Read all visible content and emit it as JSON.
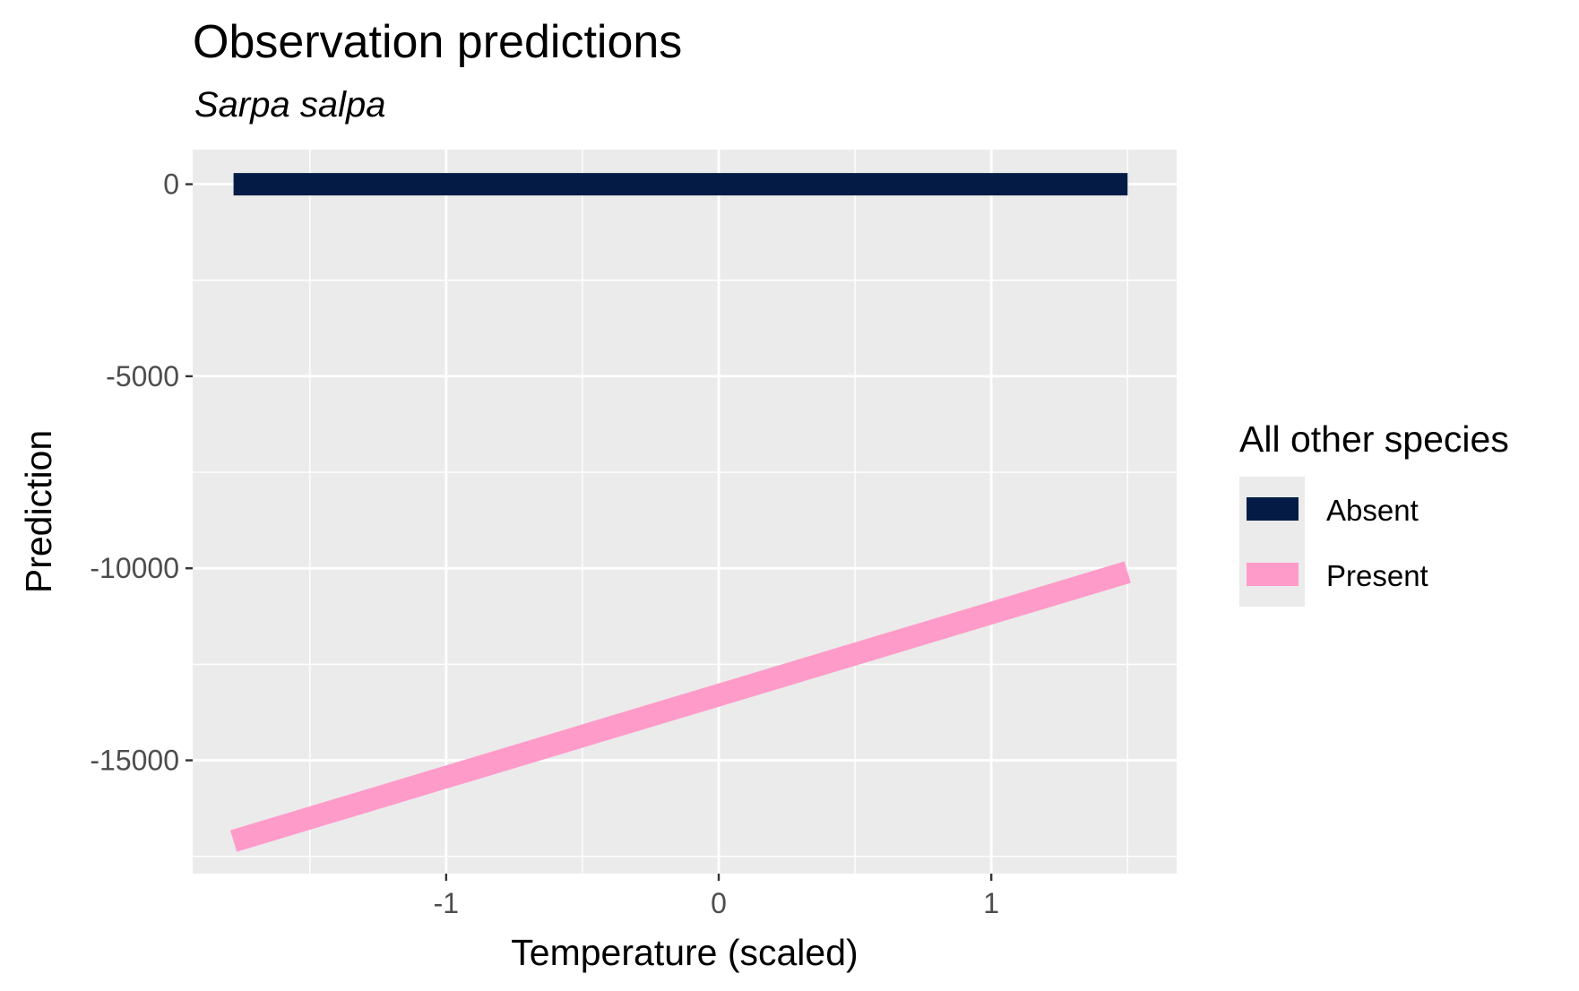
{
  "chart_data": {
    "type": "line",
    "title": "Observation predictions",
    "subtitle": "Sarpa salpa",
    "xlabel": "Temperature (scaled)",
    "ylabel": "Prediction",
    "xlim": [
      -1.93,
      1.68
    ],
    "ylim": [
      -17950,
      900
    ],
    "x_ticks": [
      -1,
      0,
      1
    ],
    "x_tick_labels": [
      "-1",
      "0",
      "1"
    ],
    "x_minor": [
      -1.5,
      -0.5,
      0.5,
      1.5
    ],
    "y_ticks": [
      0,
      -5000,
      -10000,
      -15000
    ],
    "y_tick_labels": [
      "0",
      "-5000",
      "-10000",
      "-15000"
    ],
    "y_minor": [
      -2500,
      -7500,
      -12500,
      -17500
    ],
    "grid": true,
    "legend": {
      "title": "All other species",
      "position": "right"
    },
    "series": [
      {
        "name": "Absent",
        "color": "#041c45",
        "x": [
          -1.78,
          1.5
        ],
        "y": [
          0,
          0
        ]
      },
      {
        "name": "Present",
        "color": "#fe9bc9",
        "x": [
          -1.78,
          1.5
        ],
        "y": [
          -17100,
          -10100
        ]
      }
    ]
  }
}
